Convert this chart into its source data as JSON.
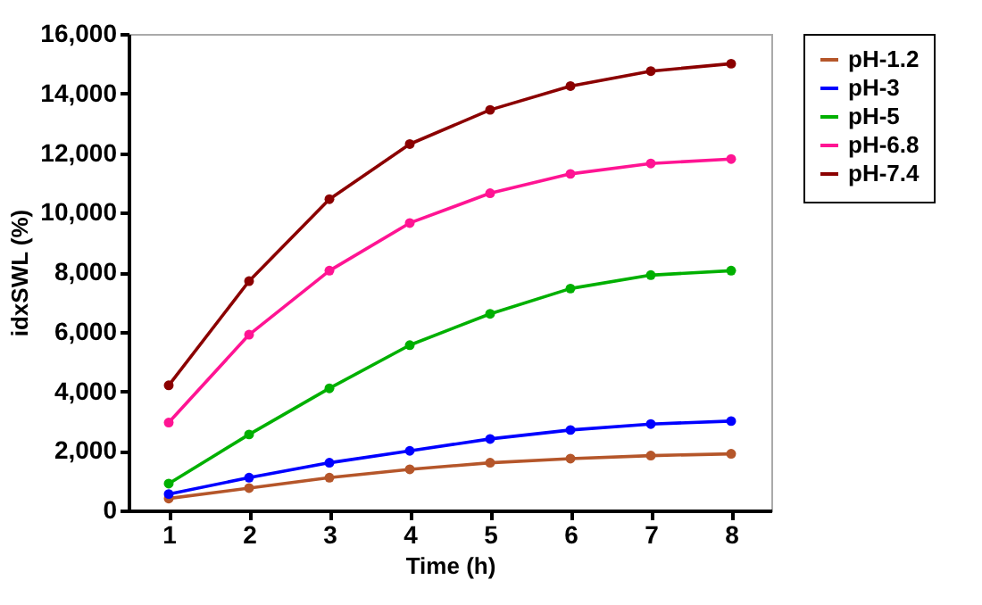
{
  "chart_data": {
    "type": "line",
    "xlabel": "Time (h)",
    "ylabel": "idxSWL (%)",
    "categories": [
      "1",
      "2",
      "3",
      "4",
      "5",
      "6",
      "7",
      "8"
    ],
    "series": [
      {
        "name": "pH-1.2",
        "color": "#b5562a",
        "values": [
          400,
          750,
          1100,
          1380,
          1600,
          1740,
          1840,
          1900
        ]
      },
      {
        "name": "pH-3",
        "color": "#0000ff",
        "values": [
          550,
          1100,
          1600,
          2000,
          2400,
          2700,
          2900,
          3000
        ]
      },
      {
        "name": "pH-5",
        "color": "#00b000",
        "values": [
          900,
          2550,
          4100,
          5550,
          6600,
          7450,
          7900,
          8050
        ]
      },
      {
        "name": "pH-6.8",
        "color": "#ff1493",
        "values": [
          2950,
          5900,
          8050,
          9650,
          10650,
          11300,
          11650,
          11800
        ]
      },
      {
        "name": "pH-7.4",
        "color": "#8b0000",
        "values": [
          4200,
          7700,
          10450,
          12300,
          13450,
          14250,
          14750,
          15000
        ]
      }
    ],
    "ylim": [
      0,
      16000
    ],
    "yticks": [
      0,
      {
        "value": 2000,
        "label": "2,000"
      },
      {
        "value": 4000,
        "label": "4,000"
      },
      {
        "value": 6000,
        "label": "6,000"
      },
      {
        "value": 8000,
        "label": "8,000"
      },
      {
        "value": 10000,
        "label": "10,000"
      },
      {
        "value": 12000,
        "label": "12,000"
      },
      {
        "value": 14000,
        "label": "14,000"
      },
      {
        "value": 16000,
        "label": "16,000"
      }
    ],
    "grid": false,
    "legend": "right",
    "marker": "circle",
    "line_style": "solid"
  }
}
